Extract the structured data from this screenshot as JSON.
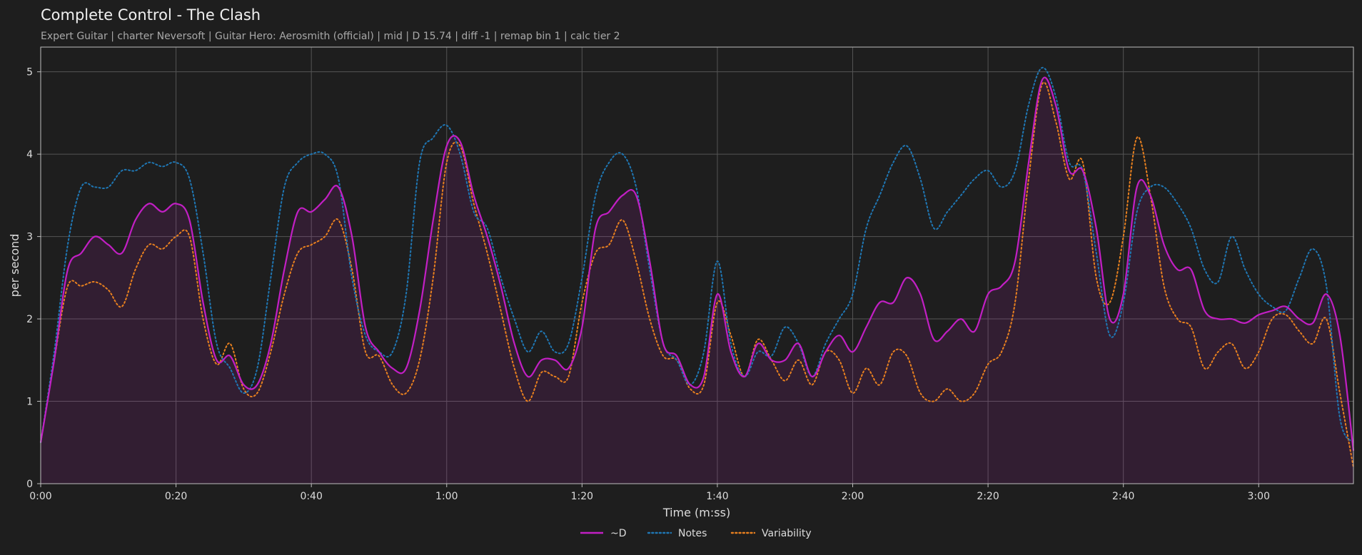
{
  "chart_data": {
    "type": "line",
    "title": "Complete Control - The Clash",
    "subtitle": "Expert Guitar  |  charter Neversoft  |  Guitar Hero: Aerosmith (official)  |  mid  |  D 15.74  |  diff -1  |  remap bin 1  |  calc tier 2",
    "xlabel": "Time (m:ss)",
    "ylabel": "per second",
    "xlim": [
      0,
      194
    ],
    "ylim": [
      0,
      5.3
    ],
    "xticks": [
      0,
      20,
      40,
      60,
      80,
      100,
      120,
      140,
      160,
      180
    ],
    "xtick_labels": [
      "0:00",
      "0:20",
      "0:40",
      "1:00",
      "1:20",
      "1:40",
      "2:00",
      "2:20",
      "2:40",
      "3:00"
    ],
    "yticks": [
      0,
      1,
      2,
      3,
      4,
      5
    ],
    "ytick_labels": [
      "0",
      "1",
      "2",
      "3",
      "4",
      "5"
    ],
    "grid": true,
    "legend_position": "bottom-center",
    "x": [
      0,
      2,
      4,
      6,
      8,
      10,
      12,
      14,
      16,
      18,
      20,
      22,
      24,
      26,
      28,
      30,
      32,
      34,
      36,
      38,
      40,
      42,
      44,
      46,
      48,
      50,
      52,
      54,
      56,
      58,
      60,
      62,
      64,
      66,
      68,
      70,
      72,
      74,
      76,
      78,
      80,
      82,
      84,
      86,
      88,
      90,
      92,
      94,
      96,
      98,
      100,
      102,
      104,
      106,
      108,
      110,
      112,
      114,
      116,
      118,
      120,
      122,
      124,
      126,
      128,
      130,
      132,
      134,
      136,
      138,
      140,
      142,
      144,
      146,
      148,
      150,
      152,
      154,
      156,
      158,
      160,
      162,
      164,
      166,
      168,
      170,
      172,
      174,
      176,
      178,
      180,
      182,
      184,
      186,
      188,
      190,
      192,
      194
    ],
    "series": [
      {
        "name": "~D",
        "color": "#c21fc4",
        "style": "solid",
        "fill": true,
        "values": [
          0.5,
          1.5,
          2.6,
          2.8,
          3.0,
          2.9,
          2.8,
          3.2,
          3.4,
          3.3,
          3.4,
          3.2,
          2.2,
          1.5,
          1.55,
          1.2,
          1.2,
          1.7,
          2.6,
          3.3,
          3.3,
          3.45,
          3.6,
          3.0,
          1.9,
          1.6,
          1.4,
          1.4,
          2.1,
          3.2,
          4.1,
          4.15,
          3.5,
          3.0,
          2.4,
          1.7,
          1.3,
          1.5,
          1.5,
          1.4,
          1.9,
          3.1,
          3.3,
          3.5,
          3.5,
          2.7,
          1.7,
          1.55,
          1.2,
          1.3,
          2.3,
          1.6,
          1.3,
          1.7,
          1.5,
          1.5,
          1.7,
          1.3,
          1.6,
          1.8,
          1.6,
          1.9,
          2.2,
          2.2,
          2.5,
          2.3,
          1.75,
          1.85,
          2.0,
          1.85,
          2.3,
          2.4,
          2.7,
          3.9,
          4.9,
          4.6,
          3.8,
          3.8,
          3.1,
          2.0,
          2.3,
          3.6,
          3.5,
          2.9,
          2.6,
          2.6,
          2.1,
          2.0,
          2.0,
          1.95,
          2.05,
          2.1,
          2.15,
          2.0,
          1.95,
          2.3,
          1.8,
          0.4
        ]
      },
      {
        "name": "Notes",
        "color": "#1f77b4",
        "style": "dotted",
        "fill": false,
        "values": [
          0.5,
          1.6,
          2.9,
          3.6,
          3.6,
          3.6,
          3.8,
          3.8,
          3.9,
          3.85,
          3.9,
          3.7,
          2.8,
          1.7,
          1.4,
          1.1,
          1.4,
          2.5,
          3.6,
          3.9,
          4.0,
          4.0,
          3.7,
          2.5,
          1.8,
          1.6,
          1.6,
          2.3,
          3.9,
          4.2,
          4.35,
          4.0,
          3.3,
          3.1,
          2.5,
          2.0,
          1.6,
          1.85,
          1.6,
          1.7,
          2.5,
          3.5,
          3.9,
          4.0,
          3.6,
          2.6,
          1.7,
          1.5,
          1.2,
          1.6,
          2.7,
          1.7,
          1.3,
          1.6,
          1.55,
          1.9,
          1.7,
          1.3,
          1.7,
          2.0,
          2.3,
          3.1,
          3.5,
          3.9,
          4.1,
          3.7,
          3.1,
          3.3,
          3.5,
          3.7,
          3.8,
          3.6,
          3.8,
          4.6,
          5.05,
          4.7,
          3.9,
          3.8,
          2.8,
          1.8,
          2.2,
          3.3,
          3.6,
          3.6,
          3.4,
          3.1,
          2.6,
          2.45,
          3.0,
          2.6,
          2.3,
          2.15,
          2.1,
          2.5,
          2.85,
          2.4,
          0.8,
          0.5
        ]
      },
      {
        "name": "Variability",
        "color": "#e8801f",
        "style": "dotted",
        "fill": false,
        "values": [
          0.5,
          1.5,
          2.4,
          2.4,
          2.45,
          2.35,
          2.15,
          2.6,
          2.9,
          2.85,
          3.0,
          3.0,
          2.0,
          1.45,
          1.7,
          1.15,
          1.1,
          1.6,
          2.3,
          2.8,
          2.9,
          3.0,
          3.2,
          2.6,
          1.6,
          1.55,
          1.2,
          1.1,
          1.5,
          2.5,
          3.9,
          4.1,
          3.4,
          2.8,
          2.1,
          1.4,
          1.0,
          1.35,
          1.3,
          1.3,
          2.2,
          2.8,
          2.9,
          3.2,
          2.7,
          2.0,
          1.55,
          1.5,
          1.15,
          1.2,
          2.2,
          1.8,
          1.3,
          1.75,
          1.5,
          1.25,
          1.5,
          1.2,
          1.6,
          1.5,
          1.1,
          1.4,
          1.2,
          1.6,
          1.55,
          1.1,
          1.0,
          1.15,
          1.0,
          1.1,
          1.45,
          1.6,
          2.2,
          3.7,
          4.85,
          4.4,
          3.7,
          3.9,
          2.5,
          2.2,
          3.0,
          4.2,
          3.5,
          2.4,
          2.0,
          1.9,
          1.4,
          1.6,
          1.7,
          1.4,
          1.6,
          2.0,
          2.05,
          1.85,
          1.7,
          2.0,
          1.1,
          0.2
        ]
      }
    ]
  }
}
